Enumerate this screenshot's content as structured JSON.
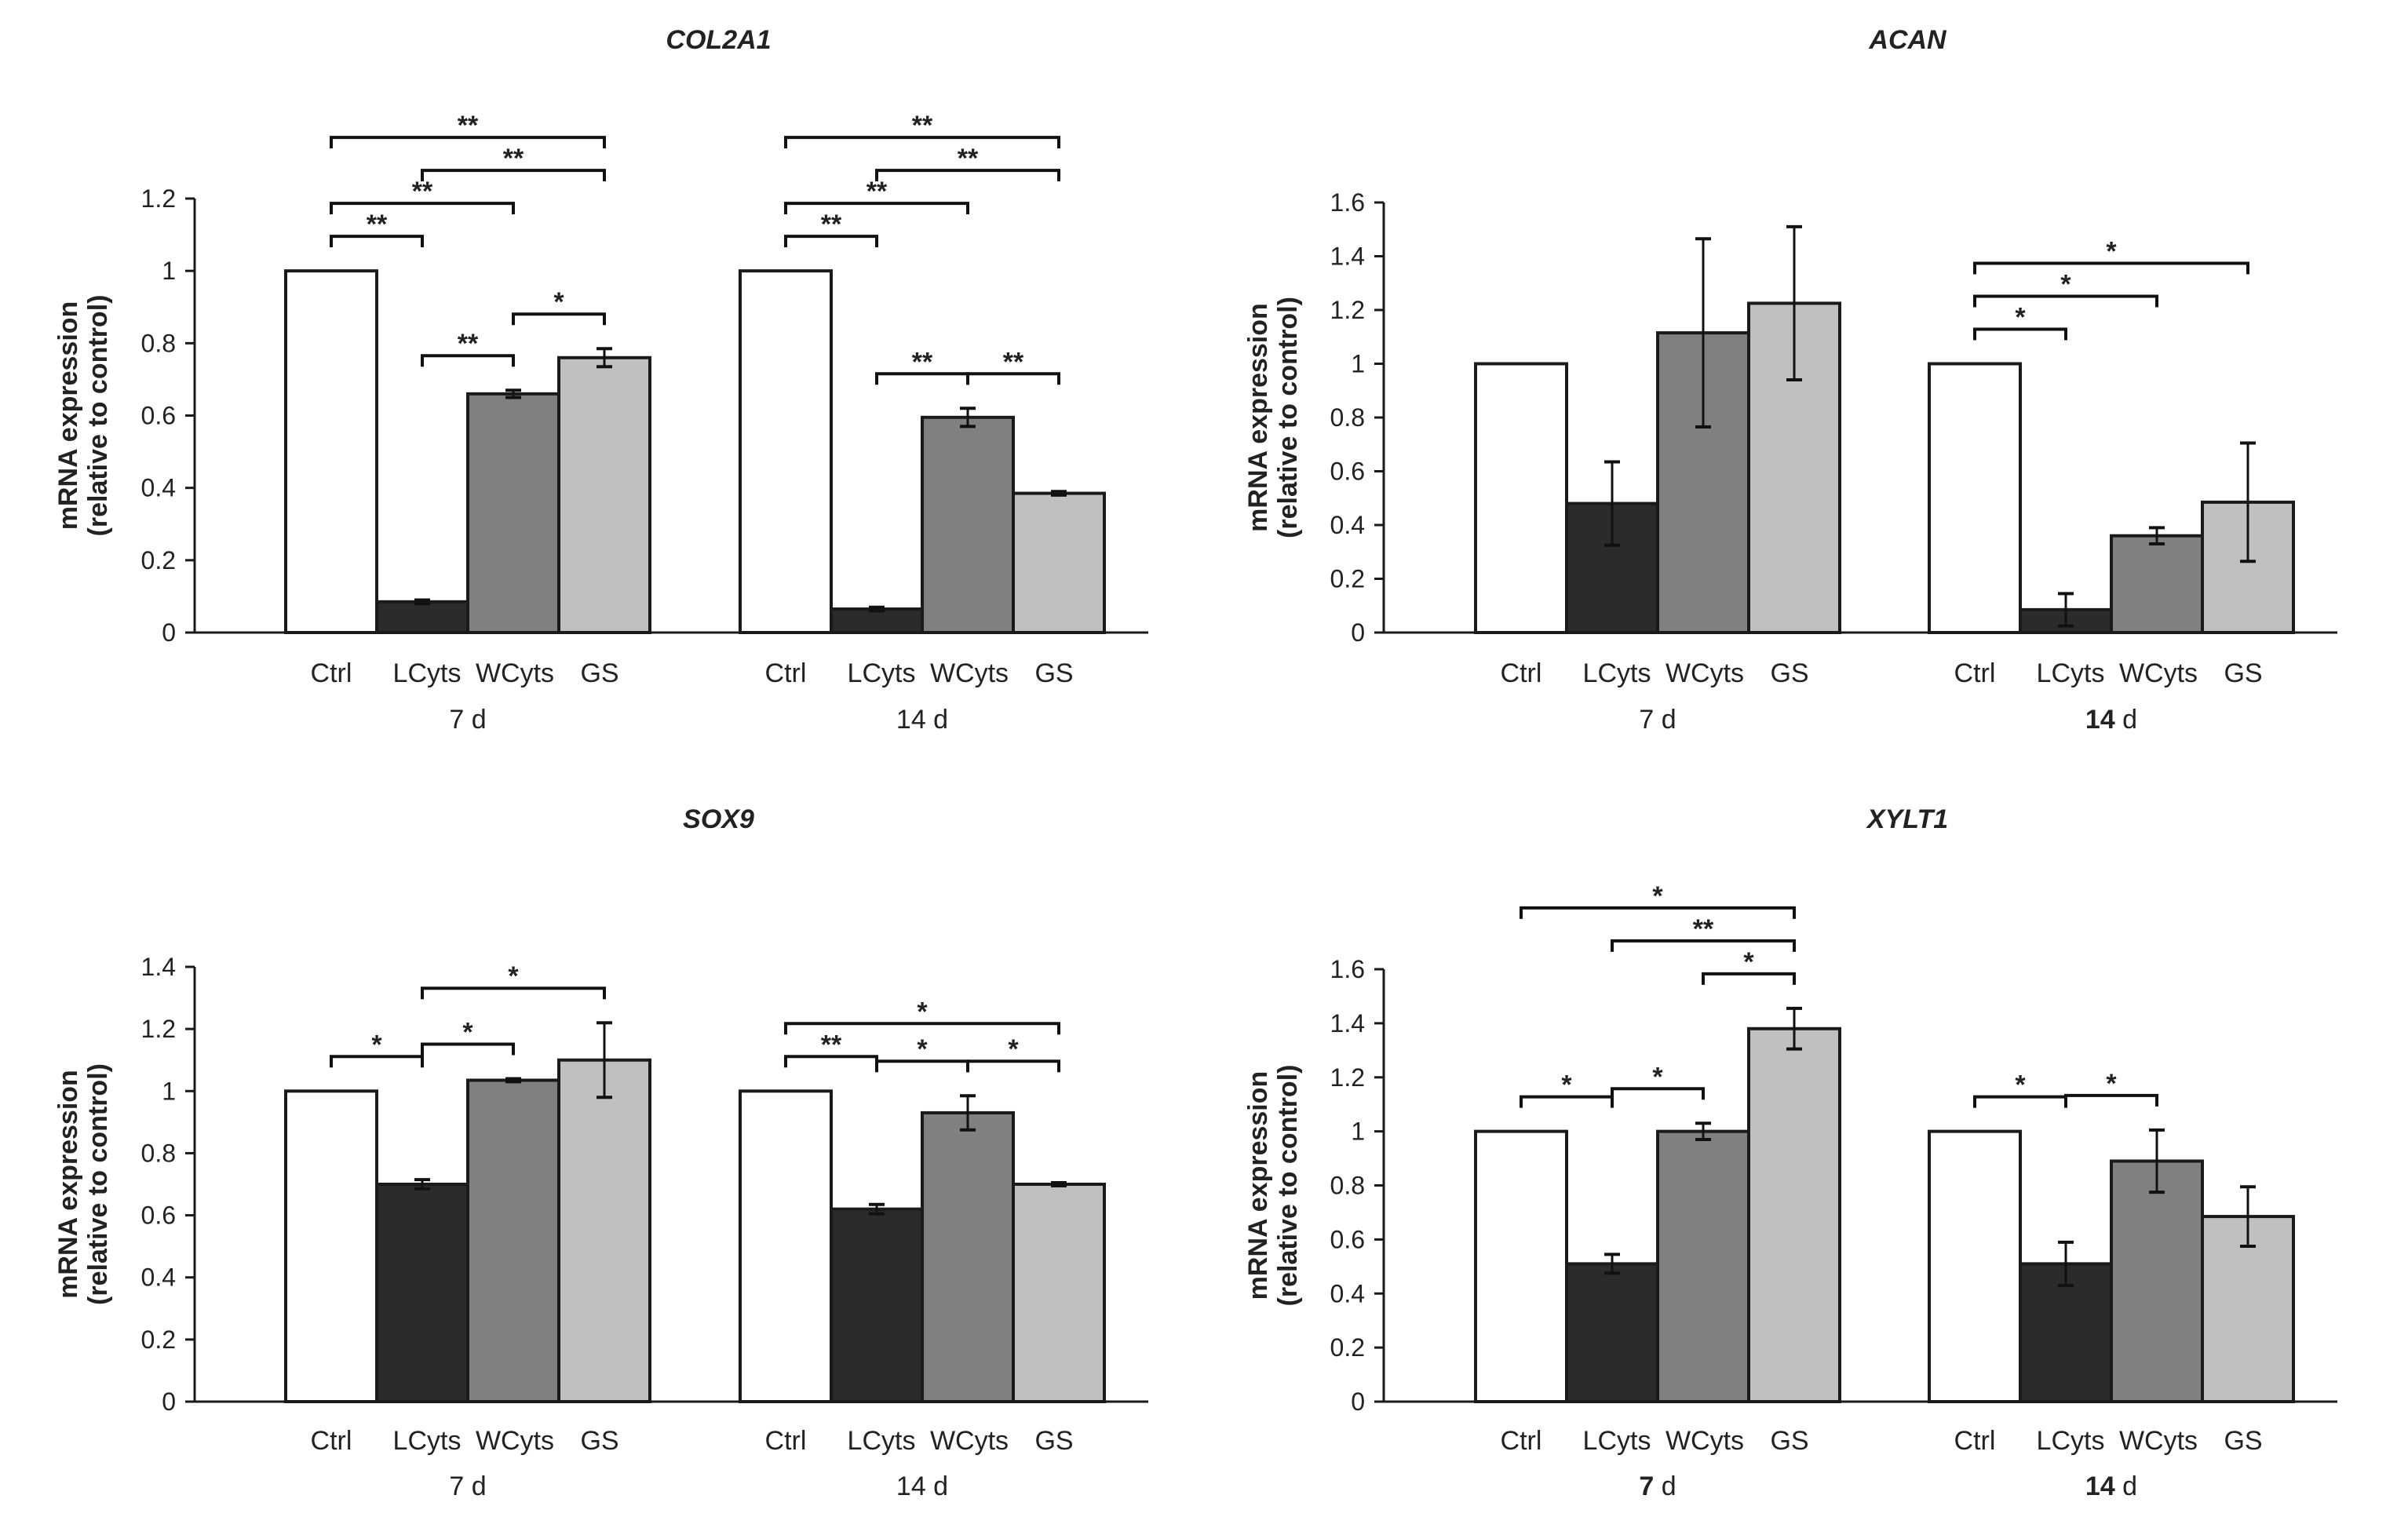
{
  "colors": {
    "Ctrl": "#ffffff",
    "LCyts": "#2b2b2b",
    "WCyts": "#808080",
    "GS": "#c0c0c0",
    "stroke": "#1a1a1a"
  },
  "chart_data": [
    {
      "type": "bar",
      "title": "COL2A1",
      "ylabel": [
        "mRNA expression",
        "(relative to control)"
      ],
      "ylim": [
        0,
        1.2
      ],
      "yticks": [
        "0",
        "0.2",
        "0.4",
        "0.6",
        "0.8",
        "1",
        "1.2"
      ],
      "categories": [
        "Ctrl",
        "LCyts",
        "WCyts",
        "GS"
      ],
      "groups": [
        {
          "label": "7 d",
          "label_bold": false,
          "values": [
            1.0,
            0.085,
            0.66,
            0.76
          ],
          "errors": [
            0,
            0.005,
            0.01,
            0.025
          ]
        },
        {
          "label": "14 d",
          "label_bold": false,
          "values": [
            1.0,
            0.065,
            0.595,
            0.385
          ],
          "errors": [
            0,
            0.005,
            0.025,
            0.005
          ]
        }
      ],
      "significance": [
        {
          "group": 0,
          "from": 0,
          "to": 1,
          "label": "**"
        },
        {
          "group": 0,
          "from": 0,
          "to": 2,
          "label": "**"
        },
        {
          "group": 0,
          "from": 0,
          "to": 3,
          "label": "**"
        },
        {
          "group": 0,
          "from": 1,
          "to": 2,
          "label": "**"
        },
        {
          "group": 0,
          "from": 1,
          "to": 3,
          "label": "**"
        },
        {
          "group": 0,
          "from": 2,
          "to": 3,
          "label": "*"
        },
        {
          "group": 1,
          "from": 0,
          "to": 1,
          "label": "**"
        },
        {
          "group": 1,
          "from": 0,
          "to": 2,
          "label": "**"
        },
        {
          "group": 1,
          "from": 0,
          "to": 3,
          "label": "**"
        },
        {
          "group": 1,
          "from": 1,
          "to": 2,
          "label": "**"
        },
        {
          "group": 1,
          "from": 1,
          "to": 3,
          "label": "**"
        },
        {
          "group": 1,
          "from": 2,
          "to": 3,
          "label": "**"
        }
      ]
    },
    {
      "type": "bar",
      "title": "ACAN",
      "ylabel": [
        "mRNA expression",
        "(relative to control)"
      ],
      "ylim": [
        0,
        1.6
      ],
      "yticks": [
        "0",
        "0.2",
        "0.4",
        "0.6",
        "0.8",
        "1",
        "1.2",
        "1.4",
        "1.6"
      ],
      "categories": [
        "Ctrl",
        "LCyts",
        "WCyts",
        "GS"
      ],
      "groups": [
        {
          "label": "7 d",
          "label_bold": false,
          "values": [
            1.0,
            0.48,
            1.115,
            1.225
          ],
          "errors": [
            0,
            0.155,
            0.35,
            0.285
          ]
        },
        {
          "label": "14 d",
          "label_bold": true,
          "values": [
            1.0,
            0.085,
            0.36,
            0.485
          ],
          "errors": [
            0,
            0.06,
            0.03,
            0.22
          ]
        }
      ],
      "significance": [
        {
          "group": 1,
          "from": 0,
          "to": 1,
          "label": "*"
        },
        {
          "group": 1,
          "from": 0,
          "to": 2,
          "label": "*"
        },
        {
          "group": 1,
          "from": 0,
          "to": 3,
          "label": "*"
        }
      ]
    },
    {
      "type": "bar",
      "title": "SOX9",
      "ylabel": [
        "mRNA expression",
        "(relative to control)"
      ],
      "ylim": [
        0,
        1.4
      ],
      "yticks": [
        "0",
        "0.2",
        "0.4",
        "0.6",
        "0.8",
        "1",
        "1.2",
        "1.4"
      ],
      "categories": [
        "Ctrl",
        "LCyts",
        "WCyts",
        "GS"
      ],
      "groups": [
        {
          "label": "7 d",
          "label_bold": false,
          "values": [
            1.0,
            0.7,
            1.035,
            1.1
          ],
          "errors": [
            0,
            0.015,
            0.005,
            0.12
          ]
        },
        {
          "label": "14 d",
          "label_bold": false,
          "values": [
            1.0,
            0.62,
            0.93,
            0.7
          ],
          "errors": [
            0,
            0.015,
            0.055,
            0.005
          ]
        }
      ],
      "significance": [
        {
          "group": 0,
          "from": 0,
          "to": 1,
          "label": "*"
        },
        {
          "group": 0,
          "from": 1,
          "to": 2,
          "label": "*"
        },
        {
          "group": 0,
          "from": 1,
          "to": 3,
          "label": "*"
        },
        {
          "group": 1,
          "from": 0,
          "to": 1,
          "label": "**"
        },
        {
          "group": 1,
          "from": 1,
          "to": 2,
          "label": "*"
        },
        {
          "group": 1,
          "from": 0,
          "to": 3,
          "label": "*"
        },
        {
          "group": 1,
          "from": 2,
          "to": 3,
          "label": "*"
        }
      ]
    },
    {
      "type": "bar",
      "title": "XYLT1",
      "ylabel": [
        "mRNA expression",
        "(relative to control)"
      ],
      "ylim": [
        0,
        1.6
      ],
      "yticks": [
        "0",
        "0.2",
        "0.4",
        "0.6",
        "0.8",
        "1",
        "1.2",
        "1.4",
        "1.6"
      ],
      "categories": [
        "Ctrl",
        "LCyts",
        "WCyts",
        "GS"
      ],
      "groups": [
        {
          "label": "7 d",
          "label_bold": true,
          "values": [
            1.0,
            0.51,
            1.0,
            1.38
          ],
          "errors": [
            0,
            0.035,
            0.03,
            0.075
          ]
        },
        {
          "label": "14 d",
          "label_bold": true,
          "values": [
            1.0,
            0.51,
            0.89,
            0.685
          ],
          "errors": [
            0,
            0.08,
            0.115,
            0.11
          ]
        }
      ],
      "significance": [
        {
          "group": 0,
          "from": 0,
          "to": 1,
          "label": "*"
        },
        {
          "group": 0,
          "from": 0,
          "to": 3,
          "label": "*"
        },
        {
          "group": 0,
          "from": 1,
          "to": 2,
          "label": "*"
        },
        {
          "group": 0,
          "from": 1,
          "to": 3,
          "label": "**"
        },
        {
          "group": 0,
          "from": 2,
          "to": 3,
          "label": "*"
        },
        {
          "group": 1,
          "from": 0,
          "to": 1,
          "label": "*"
        },
        {
          "group": 1,
          "from": 1,
          "to": 2,
          "label": "*"
        }
      ]
    }
  ]
}
